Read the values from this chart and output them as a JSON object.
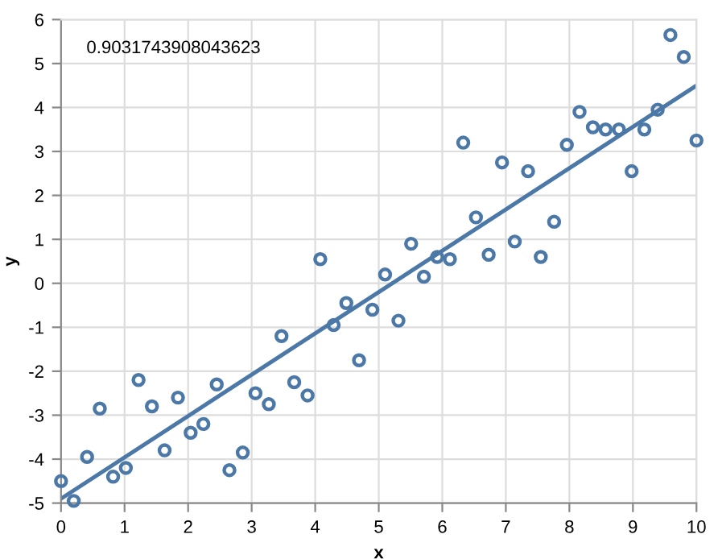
{
  "chart_data": {
    "type": "scatter",
    "xlabel": "x",
    "ylabel": "y",
    "annotations": [
      "0.9031743908043623"
    ],
    "xlim": [
      0,
      10
    ],
    "ylim": [
      -5,
      6
    ],
    "xticks": [
      0,
      1,
      2,
      3,
      4,
      5,
      6,
      7,
      8,
      9,
      10
    ],
    "yticks": [
      -5,
      -4,
      -3,
      -2,
      -1,
      0,
      1,
      2,
      3,
      4,
      5,
      6
    ],
    "grid": true,
    "series": [
      {
        "marker": "circle",
        "color": "#4c78a8",
        "x": [
          0,
          0.2,
          0.41,
          0.61,
          0.82,
          1.02,
          1.22,
          1.43,
          1.63,
          1.84,
          2.04,
          2.24,
          2.45,
          2.65,
          2.86,
          3.06,
          3.27,
          3.47,
          3.67,
          3.88,
          4.08,
          4.29,
          4.49,
          4.69,
          4.9,
          5.1,
          5.31,
          5.51,
          5.71,
          5.92,
          6.12,
          6.33,
          6.53,
          6.73,
          6.94,
          7.14,
          7.35,
          7.55,
          7.76,
          7.96,
          8.16,
          8.37,
          8.57,
          8.78,
          8.98,
          9.18,
          9.39,
          9.59,
          9.8,
          10
        ],
        "values": [
          -4.5,
          -4.95,
          -3.95,
          -2.85,
          -4.4,
          -4.2,
          -2.2,
          -2.8,
          -3.8,
          -2.6,
          -3.4,
          -3.2,
          -2.3,
          -4.25,
          -3.85,
          -2.5,
          -2.75,
          -1.2,
          -2.25,
          -2.55,
          0.55,
          -0.95,
          -0.45,
          -1.75,
          -0.6,
          0.2,
          -0.85,
          0.9,
          0.15,
          0.6,
          0.55,
          3.2,
          1.5,
          0.65,
          2.75,
          0.95,
          2.55,
          0.6,
          1.4,
          3.15,
          3.9,
          3.55,
          3.5,
          3.5,
          2.55,
          3.5,
          3.95,
          5.65,
          5.15,
          3.25
        ]
      },
      {
        "type": "line",
        "marker": "none",
        "line_style": "solid",
        "color": "#4c78a8",
        "x": [
          0,
          10
        ],
        "values": [
          -4.9,
          4.5
        ]
      }
    ]
  }
}
